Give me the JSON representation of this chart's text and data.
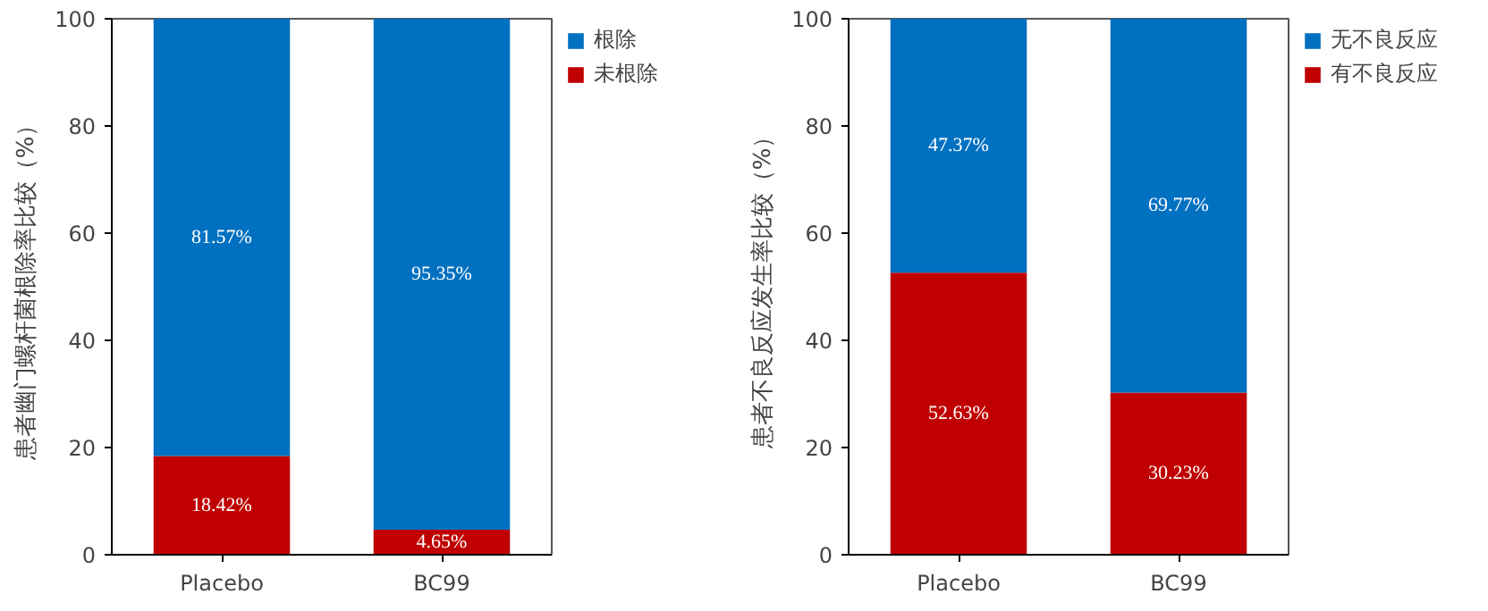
{
  "chart_data": [
    {
      "type": "bar",
      "stacked": true,
      "ylabel": "患者幽门螺杆菌根除率比较（%）",
      "categories": [
        "Placebo",
        "BC99"
      ],
      "ylim": [
        0,
        100
      ],
      "yticks": [
        0,
        20,
        40,
        60,
        80,
        100
      ],
      "grid": false,
      "legend": "top right",
      "series": [
        {
          "name": "未根除",
          "color": "#c00000",
          "values": [
            18.42,
            4.65
          ],
          "value_labels": [
            "18.42%",
            "4.65%"
          ]
        },
        {
          "name": "根除",
          "color": "#0070c0",
          "values": [
            81.57,
            95.35
          ],
          "value_labels": [
            "81.57%",
            "95.35%"
          ]
        }
      ]
    },
    {
      "type": "bar",
      "stacked": true,
      "ylabel": "患者不良反应发生率比较（%）",
      "categories": [
        "Placebo",
        "BC99"
      ],
      "ylim": [
        0,
        100
      ],
      "yticks": [
        0,
        20,
        40,
        60,
        80,
        100
      ],
      "grid": false,
      "legend": "top right",
      "series": [
        {
          "name": "有不良反应",
          "color": "#c00000",
          "values": [
            52.63,
            30.23
          ],
          "value_labels": [
            "52.63%",
            "30.23%"
          ]
        },
        {
          "name": "无不良反应",
          "color": "#0070c0",
          "values": [
            47.37,
            69.77
          ],
          "value_labels": [
            "47.37%",
            "69.77%"
          ]
        }
      ]
    }
  ]
}
